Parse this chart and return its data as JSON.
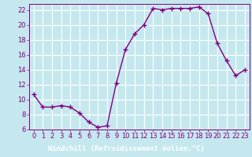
{
  "x": [
    0,
    1,
    2,
    3,
    4,
    5,
    6,
    7,
    8,
    9,
    10,
    11,
    12,
    13,
    14,
    15,
    16,
    17,
    18,
    19,
    20,
    21,
    22,
    23
  ],
  "y": [
    10.7,
    9.0,
    9.0,
    9.2,
    9.0,
    8.2,
    7.0,
    6.3,
    6.5,
    12.2,
    16.7,
    18.8,
    20.0,
    22.2,
    22.0,
    22.2,
    22.2,
    22.2,
    22.4,
    21.5,
    17.5,
    15.2,
    13.2,
    14.0
  ],
  "line_color": "#800080",
  "marker": "+",
  "markersize": 4,
  "linewidth": 1.0,
  "bg_color": "#c5e8ef",
  "grid_color": "#ffffff",
  "xlabel": "Windchill (Refroidissement éolien,°C)",
  "xlabel_fontsize": 6.5,
  "tick_fontsize": 6.0,
  "xlim": [
    -0.5,
    23.5
  ],
  "ylim": [
    6,
    22.8
  ],
  "yticks": [
    6,
    8,
    10,
    12,
    14,
    16,
    18,
    20,
    22
  ],
  "xticks": [
    0,
    1,
    2,
    3,
    4,
    5,
    6,
    7,
    8,
    9,
    10,
    11,
    12,
    13,
    14,
    15,
    16,
    17,
    18,
    19,
    20,
    21,
    22,
    23
  ],
  "xlabel_bg": "#5c3070",
  "xlabel_fg": "#ffffff"
}
